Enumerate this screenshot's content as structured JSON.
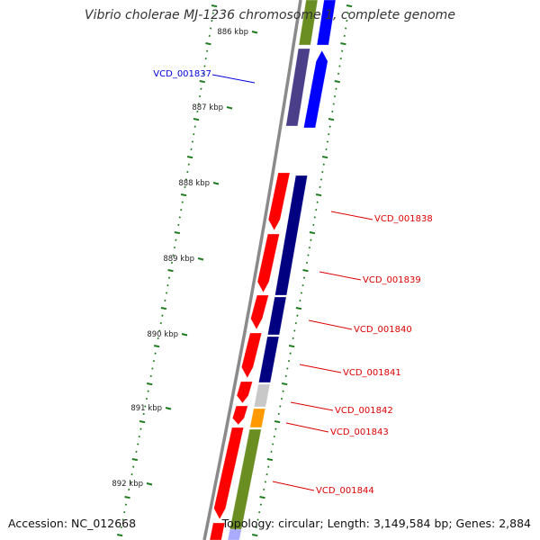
{
  "title": "Vibrio cholerae MJ-1236 chromosome 1, complete genome",
  "footer": {
    "accession": "Accession: NC_012668",
    "summary": "Topology: circular; Length: 3,149,584 bp; Genes: 2,884"
  },
  "colors": {
    "backbone": "#8a8a8a",
    "tick": "#1e7a1e",
    "forward_gene": "#ff0000",
    "reverse_gene_navy": "#000080",
    "reverse_gene_blue": "#0000ff",
    "purple_gene": "#4b3f8a",
    "olive_gene": "#6b8e23",
    "grey_gene": "#c8c8c8",
    "orange_gene": "#ff9900",
    "selected_label": "#0000dd",
    "label": "#dd0000"
  },
  "scale_labels": [
    "886 kbp",
    "887 kbp",
    "888 kbp",
    "889 kbp",
    "890 kbp",
    "891 kbp",
    "892 kbp"
  ],
  "gene_labels": [
    {
      "id": "VCD_001837",
      "selected": true
    },
    {
      "id": "VCD_001838",
      "selected": false
    },
    {
      "id": "VCD_001839",
      "selected": false
    },
    {
      "id": "VCD_001840",
      "selected": false
    },
    {
      "id": "VCD_001841",
      "selected": false
    },
    {
      "id": "VCD_001842",
      "selected": false
    },
    {
      "id": "VCD_001843",
      "selected": false
    },
    {
      "id": "VCD_001844",
      "selected": false
    }
  ]
}
